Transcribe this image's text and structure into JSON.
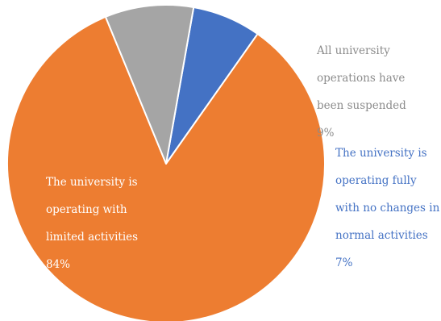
{
  "chart_data": {
    "type": "pie",
    "title": "",
    "slices": [
      {
        "label": "The university is operating fully with no changes in normal activities",
        "value": 7,
        "value_label": "7%",
        "color": "#4472C4",
        "label_color": "#4472C4",
        "label_lines": [
          "The university is",
          "operating fully",
          "with no changes in",
          "normal activities"
        ]
      },
      {
        "label": "The university is operating with limited activities",
        "value": 84,
        "value_label": "84%",
        "color": "#ED7D31",
        "label_color": "#FFFFFF",
        "label_lines": [
          "The university is",
          "operating with",
          "limited activities"
        ]
      },
      {
        "label": "All university operations have been suspended",
        "value": 9,
        "value_label": "9%",
        "color": "#A5A5A5",
        "label_color": "#8C8C8C",
        "label_lines": [
          "All university",
          "operations have",
          "been suspended"
        ]
      }
    ],
    "start_angle_deg": 80,
    "direction": "clockwise",
    "legend": "none",
    "slice_border_color": "#FFFFFF"
  }
}
